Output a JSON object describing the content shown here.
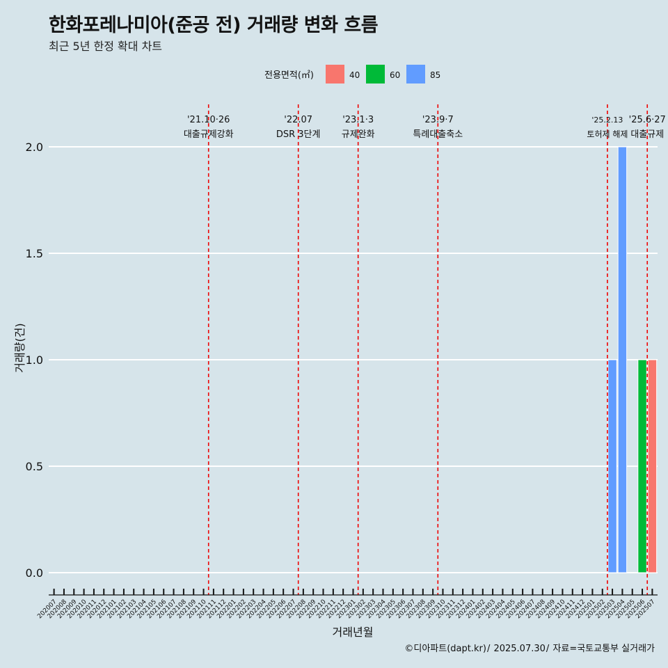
{
  "header": {
    "title": "한화포레나미아(준공 전) 거래량 변화 흐름",
    "subtitle": "최근 5년 한정 확대 차트"
  },
  "caption": {
    "source": "©디아파트(dapt.kr)",
    "date": "2025.07.30",
    "data_source": "자료=국토교통부 실거래가"
  },
  "chart_data": {
    "type": "bar",
    "title": "한화포레나미아(준공 전) 거래량 변화 흐름",
    "subtitle": "최근 5년 한정 확대 차트",
    "xlabel": "거래년월",
    "ylabel": "거래량(건)",
    "ylim": [
      0,
      2.1
    ],
    "yticks": [
      0,
      0.5,
      1.0,
      1.5,
      2.0
    ],
    "ytick_labels": [
      "0.0",
      "0.5",
      "1.0",
      "1.5",
      "2.0"
    ],
    "legend": {
      "title": "전용면적(㎡)",
      "placement": "top",
      "entries": [
        {
          "name": "40",
          "color": "#f8766d"
        },
        {
          "name": "60",
          "color": "#00ba38"
        },
        {
          "name": "85",
          "color": "#619cff"
        }
      ]
    },
    "categories": [
      "202007",
      "202008",
      "202009",
      "202010",
      "202011",
      "202012",
      "202101",
      "202102",
      "202103",
      "202104",
      "202105",
      "202106",
      "202107",
      "202108",
      "202109",
      "202110",
      "202111",
      "202112",
      "202201",
      "202202",
      "202203",
      "202204",
      "202205",
      "202206",
      "202207",
      "202208",
      "202209",
      "202210",
      "202211",
      "202212",
      "202301",
      "202302",
      "202303",
      "202304",
      "202305",
      "202306",
      "202307",
      "202308",
      "202309",
      "202310",
      "202311",
      "202312",
      "202401",
      "202402",
      "202403",
      "202404",
      "202405",
      "202406",
      "202407",
      "202408",
      "202409",
      "202410",
      "202411",
      "202412",
      "202501",
      "202502",
      "202503",
      "202504",
      "202505",
      "202506",
      "202507"
    ],
    "bars": [
      {
        "month": "202503",
        "area": "85",
        "value": 1
      },
      {
        "month": "202504",
        "area": "85",
        "value": 2
      },
      {
        "month": "202506",
        "area": "60",
        "value": 1
      },
      {
        "month": "202507",
        "area": "40",
        "value": 1
      }
    ],
    "events": [
      {
        "date": "'21.10·26",
        "label": "대출규제강화",
        "at": 15.5
      },
      {
        "date": "'22.07",
        "label": "DSR 3단계",
        "at": 24.5
      },
      {
        "date": "'23.1·3",
        "label": "규제완화",
        "at": 30.5
      },
      {
        "date": "'23.9·7",
        "label": "특례대출축소",
        "at": 38.5
      },
      {
        "date": "'25.2.13",
        "label": "토허제 해제",
        "at": 55.5,
        "small": true
      },
      {
        "date": "'25.6·27",
        "label": "대출규제",
        "at": 59.5
      }
    ],
    "event_line_color": "#ee0000"
  }
}
